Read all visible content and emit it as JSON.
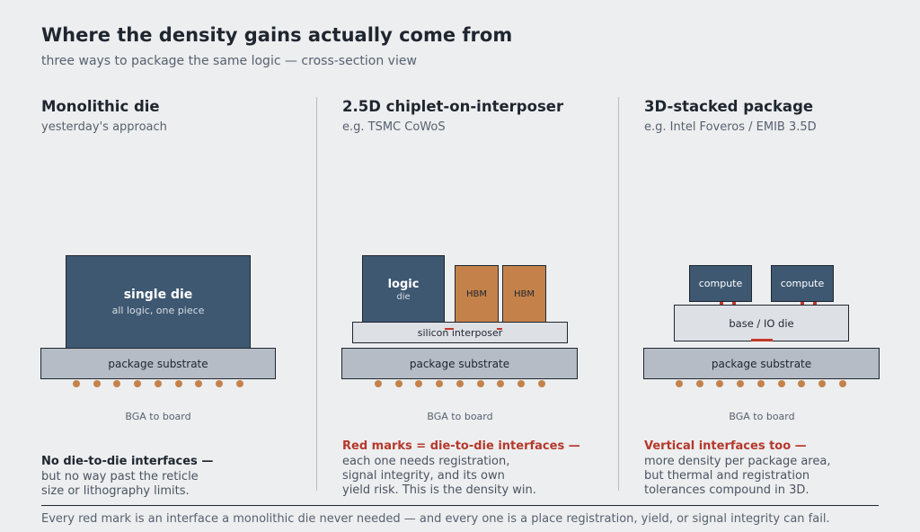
{
  "title": "Where the density gains actually come from",
  "subtitle": "three ways to package the same logic — cross-section view",
  "colors": {
    "die": "#3e5871",
    "hbm": "#c4824a",
    "interface_mark": "#c0392b",
    "substrate": "#b6bcc6",
    "interposer": "#dde0e4",
    "background": "#edeeef"
  },
  "columns": [
    {
      "heading": "Monolithic die",
      "subheading": "yesterday's approach",
      "die_label": "single die",
      "die_sublabel": "all logic, one piece",
      "substrate_label": "package substrate",
      "bga_label": "BGA to board",
      "note_heading": "No die-to-die interfaces —",
      "note_lines": [
        "but no way past the reticle",
        "size or lithography limits."
      ]
    },
    {
      "heading": "2.5D chiplet-on-interposer",
      "subheading": "e.g. TSMC CoWoS",
      "logic_label": "logic",
      "logic_sublabel": "die",
      "hbm_labels": [
        "HBM",
        "HBM"
      ],
      "interposer_label": "silicon interposer",
      "substrate_label": "package substrate",
      "bga_label": "BGA to board",
      "note_heading": "Red marks = die-to-die interfaces —",
      "note_lines": [
        "each one needs registration,",
        "signal integrity, and its own",
        "yield risk. This is the density win."
      ]
    },
    {
      "heading": "3D-stacked package",
      "subheading": "e.g. Intel Foveros / EMIB 3.5D",
      "compute_labels": [
        "compute",
        "compute"
      ],
      "base_label": "base / IO die",
      "substrate_label": "package substrate",
      "bga_label": "BGA to board",
      "note_heading": "Vertical interfaces too —",
      "note_lines": [
        "more density per package area,",
        "but thermal and registration",
        "tolerances compound in 3D."
      ]
    }
  ],
  "footer": "Every red mark is an interface a monolithic die never needed — and every one is a place registration, yield, or signal integrity can fail."
}
